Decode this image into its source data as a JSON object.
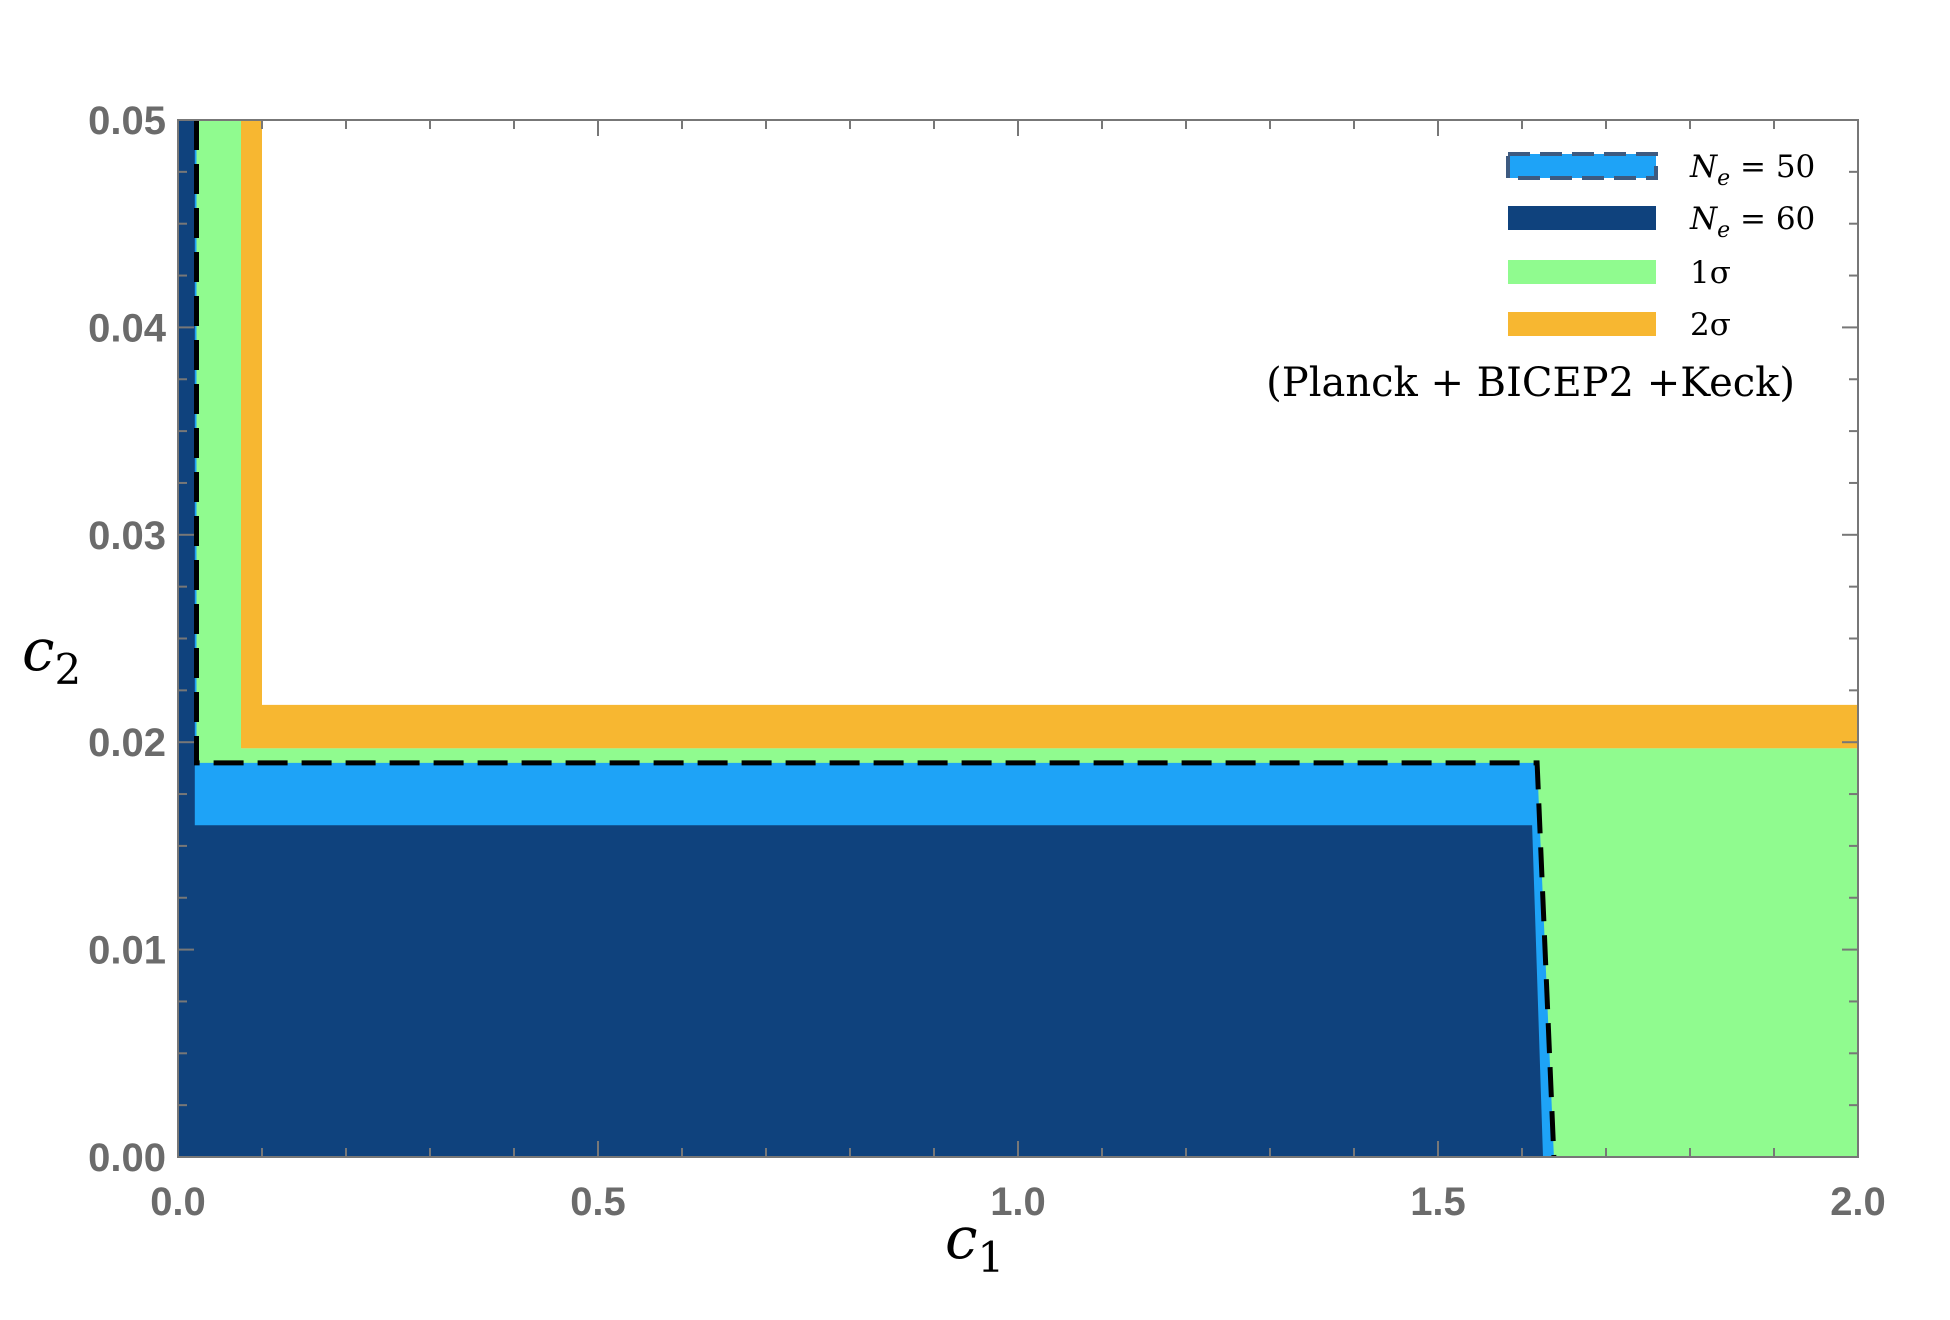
{
  "chart_data": {
    "type": "area",
    "title": "",
    "xlabel": "c",
    "xlabel_sub": "1",
    "ylabel": "c",
    "ylabel_sub": "2",
    "xlim": [
      0,
      2
    ],
    "ylim": [
      0,
      0.05
    ],
    "xticks": [
      0.0,
      0.5,
      1.0,
      1.5,
      2.0
    ],
    "xtick_labels": [
      "0.0",
      "0.5",
      "1.0",
      "1.5",
      "2.0"
    ],
    "yticks": [
      0.0,
      0.01,
      0.02,
      0.03,
      0.04,
      0.05
    ],
    "ytick_labels": [
      "0.00",
      "0.01",
      "0.02",
      "0.03",
      "0.04",
      "0.05"
    ],
    "grid": false,
    "legend_position": "top-right",
    "annotation": "(Planck + BICEP2 +Keck)",
    "regions": [
      {
        "name": "2σ",
        "color": "#f7b731",
        "polygon": [
          [
            0.075,
            0.05
          ],
          [
            0.1,
            0.05
          ],
          [
            0.1,
            0.0218
          ],
          [
            2.0,
            0.0218
          ],
          [
            2.0,
            0.0197
          ],
          [
            0.075,
            0.0197
          ]
        ]
      },
      {
        "name": "1σ",
        "color": "#90fb8f",
        "polygon": [
          [
            0.022,
            0.05
          ],
          [
            0.075,
            0.05
          ],
          [
            0.075,
            0.0197
          ],
          [
            2.0,
            0.0197
          ],
          [
            2.0,
            0.0
          ],
          [
            0.022,
            0.0
          ]
        ]
      },
      {
        "name": "N_e = 50",
        "color": "#1ea3f7",
        "polygon": [
          [
            0.0,
            0.05
          ],
          [
            0.022,
            0.05
          ],
          [
            0.022,
            0.019
          ],
          [
            1.618,
            0.019
          ],
          [
            1.638,
            0.0
          ],
          [
            0.0,
            0.0
          ]
        ]
      },
      {
        "name": "N_e = 60",
        "color": "#0f427d",
        "polygon": [
          [
            0.0,
            0.05
          ],
          [
            0.02,
            0.05
          ],
          [
            0.02,
            0.016
          ],
          [
            1.612,
            0.016
          ],
          [
            1.625,
            0.0
          ],
          [
            0.0,
            0.0
          ]
        ]
      }
    ],
    "dashed_boundary": {
      "name": "N_e = 50",
      "points": [
        [
          0.022,
          0.05
        ],
        [
          0.022,
          0.019
        ],
        [
          1.618,
          0.019
        ],
        [
          1.638,
          0.0
        ]
      ]
    },
    "legend": [
      {
        "label_main": "N",
        "label_sub": "e",
        "label_rest": " = 50",
        "color": "#1ea3f7",
        "dashed": true
      },
      {
        "label_main": "N",
        "label_sub": "e",
        "label_rest": " = 60",
        "color": "#0f427d",
        "dashed": false
      },
      {
        "label_main": "1σ",
        "label_sub": "",
        "label_rest": "",
        "color": "#90fb8f",
        "dashed": false
      },
      {
        "label_main": "2σ",
        "label_sub": "",
        "label_rest": "",
        "color": "#f7b731",
        "dashed": false
      }
    ]
  }
}
